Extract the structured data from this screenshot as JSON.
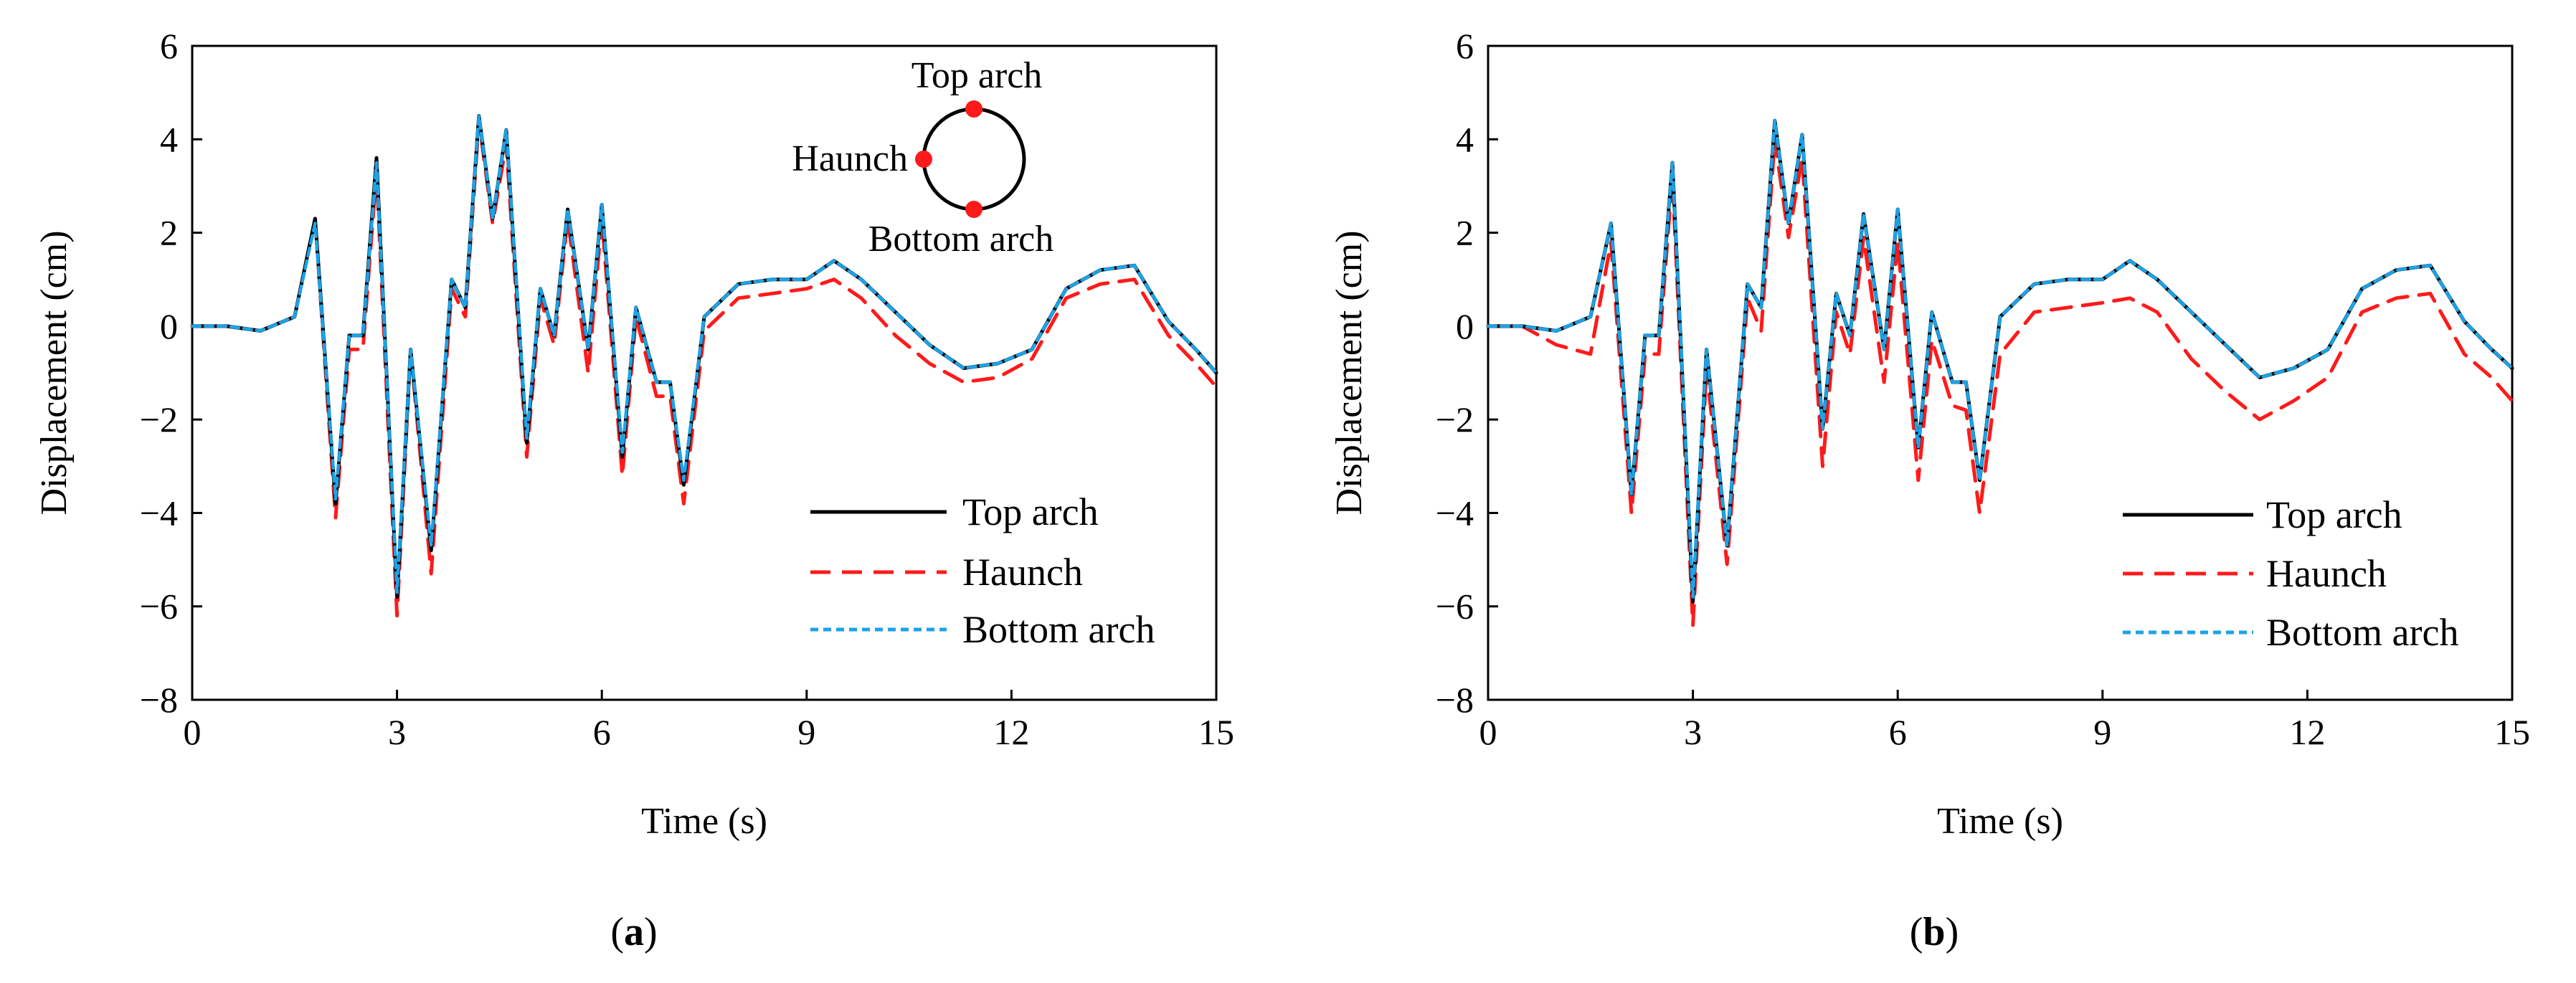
{
  "figure": {
    "panels": [
      {
        "id": "a",
        "label": "(a)",
        "label_bold": "a"
      },
      {
        "id": "b",
        "label": "(b)",
        "label_bold": "b"
      }
    ],
    "inset": {
      "top_label": "Top arch",
      "left_label": "Haunch",
      "bottom_label": "Bottom arch",
      "point_color": "#ff1a1a"
    },
    "colors": {
      "top_arch": "#000000",
      "haunch": "#ff1a1a",
      "bottom_arch": "#1aa3e8"
    }
  },
  "chart_data": [
    {
      "type": "line",
      "title": "(a)",
      "xlabel": "Time (s)",
      "ylabel": "Displacement (cm)",
      "xlim": [
        0,
        15
      ],
      "ylim": [
        -8,
        6
      ],
      "xticks": [
        0,
        3,
        6,
        9,
        12,
        15
      ],
      "yticks": [
        -8,
        -6,
        -4,
        -2,
        0,
        2,
        4,
        6
      ],
      "legend": [
        "Top arch",
        "Haunch",
        "Bottom arch"
      ],
      "legend_position": "bottom-right",
      "x": [
        0,
        0.5,
        1.0,
        1.5,
        1.8,
        2.1,
        2.3,
        2.5,
        2.7,
        3.0,
        3.2,
        3.5,
        3.8,
        4.0,
        4.2,
        4.4,
        4.6,
        4.9,
        5.1,
        5.3,
        5.5,
        5.8,
        6.0,
        6.3,
        6.5,
        6.8,
        7.0,
        7.2,
        7.5,
        8.0,
        8.5,
        9.0,
        9.4,
        9.8,
        10.3,
        10.8,
        11.3,
        11.8,
        12.3,
        12.8,
        13.3,
        13.8,
        14.3,
        14.7,
        15.0
      ],
      "series": [
        {
          "name": "Top arch",
          "values": [
            0,
            0,
            -0.1,
            0.2,
            2.3,
            -3.8,
            -0.2,
            -0.2,
            3.6,
            -5.8,
            -0.5,
            -4.8,
            1.0,
            0.4,
            4.5,
            2.3,
            4.2,
            -2.5,
            0.8,
            -0.2,
            2.5,
            -0.5,
            2.6,
            -2.8,
            0.4,
            -1.2,
            -1.2,
            -3.4,
            0.2,
            0.9,
            1.0,
            1.0,
            1.4,
            1.0,
            0.3,
            -0.4,
            -0.9,
            -0.8,
            -0.5,
            0.8,
            1.2,
            1.3,
            0.1,
            -0.5,
            -1.0
          ]
        },
        {
          "name": "Haunch",
          "values": [
            0,
            0,
            -0.1,
            0.2,
            2.3,
            -4.1,
            -0.5,
            -0.5,
            3.3,
            -6.2,
            -0.5,
            -5.3,
            0.8,
            0.2,
            4.4,
            2.2,
            3.9,
            -2.8,
            0.6,
            -0.4,
            2.3,
            -1.0,
            2.3,
            -3.2,
            0.2,
            -1.5,
            -1.5,
            -3.8,
            -0.1,
            0.6,
            0.7,
            0.8,
            1.0,
            0.6,
            -0.2,
            -0.8,
            -1.2,
            -1.1,
            -0.7,
            0.6,
            0.9,
            1.0,
            -0.2,
            -0.8,
            -1.3
          ]
        },
        {
          "name": "Bottom arch",
          "values": [
            0,
            0,
            -0.1,
            0.2,
            2.2,
            -3.7,
            -0.2,
            -0.2,
            3.5,
            -5.7,
            -0.5,
            -4.7,
            1.0,
            0.4,
            4.5,
            2.3,
            4.2,
            -2.4,
            0.8,
            -0.2,
            2.5,
            -0.5,
            2.6,
            -2.7,
            0.4,
            -1.2,
            -1.2,
            -3.3,
            0.2,
            0.9,
            1.0,
            1.0,
            1.4,
            1.0,
            0.3,
            -0.4,
            -0.9,
            -0.8,
            -0.5,
            0.8,
            1.2,
            1.3,
            0.1,
            -0.5,
            -1.0
          ]
        }
      ]
    },
    {
      "type": "line",
      "title": "(b)",
      "xlabel": "Time (s)",
      "ylabel": "Displacement (cm)",
      "xlim": [
        0,
        15
      ],
      "ylim": [
        -8,
        6
      ],
      "xticks": [
        0,
        3,
        6,
        9,
        12,
        15
      ],
      "yticks": [
        -8,
        -6,
        -4,
        -2,
        0,
        2,
        4,
        6
      ],
      "legend": [
        "Top arch",
        "Haunch",
        "Bottom arch"
      ],
      "legend_position": "bottom-right",
      "x": [
        0,
        0.5,
        1.0,
        1.5,
        1.8,
        2.1,
        2.3,
        2.5,
        2.7,
        3.0,
        3.2,
        3.5,
        3.8,
        4.0,
        4.2,
        4.4,
        4.6,
        4.9,
        5.1,
        5.3,
        5.5,
        5.8,
        6.0,
        6.3,
        6.5,
        6.8,
        7.0,
        7.2,
        7.5,
        8.0,
        8.5,
        9.0,
        9.4,
        9.8,
        10.3,
        10.8,
        11.3,
        11.8,
        12.3,
        12.8,
        13.3,
        13.8,
        14.3,
        14.7,
        15.0
      ],
      "series": [
        {
          "name": "Top arch",
          "values": [
            0,
            0,
            -0.1,
            0.2,
            2.2,
            -3.6,
            -0.2,
            -0.2,
            3.5,
            -5.9,
            -0.5,
            -4.7,
            0.9,
            0.4,
            4.4,
            2.2,
            4.1,
            -2.2,
            0.7,
            -0.2,
            2.4,
            -0.5,
            2.5,
            -2.6,
            0.3,
            -1.2,
            -1.2,
            -3.3,
            0.2,
            0.9,
            1.0,
            1.0,
            1.4,
            1.0,
            0.3,
            -0.4,
            -1.1,
            -0.9,
            -0.5,
            0.8,
            1.2,
            1.3,
            0.1,
            -0.5,
            -0.9
          ]
        },
        {
          "name": "Haunch",
          "values": [
            0,
            0,
            -0.4,
            -0.6,
            1.8,
            -4.0,
            -0.6,
            -0.6,
            3.2,
            -6.4,
            -0.9,
            -5.1,
            0.6,
            -0.1,
            4.0,
            1.9,
            3.6,
            -3.0,
            0.3,
            -0.6,
            1.9,
            -1.2,
            1.8,
            -3.3,
            -0.3,
            -1.7,
            -1.8,
            -4.0,
            -0.6,
            0.3,
            0.4,
            0.5,
            0.6,
            0.3,
            -0.7,
            -1.4,
            -2.0,
            -1.6,
            -1.1,
            0.3,
            0.6,
            0.7,
            -0.6,
            -1.1,
            -1.6
          ]
        },
        {
          "name": "Bottom arch",
          "values": [
            0,
            0,
            -0.1,
            0.2,
            2.2,
            -3.6,
            -0.2,
            -0.2,
            3.5,
            -5.8,
            -0.5,
            -4.7,
            0.9,
            0.4,
            4.4,
            2.2,
            4.1,
            -2.2,
            0.7,
            -0.2,
            2.4,
            -0.5,
            2.5,
            -2.6,
            0.3,
            -1.2,
            -1.2,
            -3.3,
            0.2,
            0.9,
            1.0,
            1.0,
            1.4,
            1.0,
            0.3,
            -0.4,
            -1.1,
            -0.9,
            -0.5,
            0.8,
            1.2,
            1.3,
            0.1,
            -0.5,
            -0.9
          ]
        }
      ]
    }
  ]
}
